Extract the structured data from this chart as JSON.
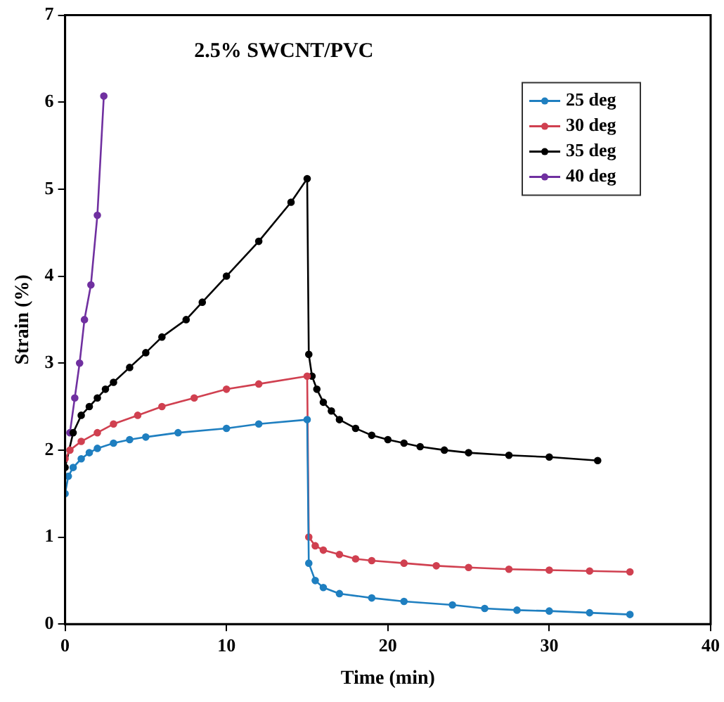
{
  "chart_data": {
    "type": "line",
    "title": "2.5% SWCNT/PVC",
    "xlabel": "Time (min)",
    "ylabel": "Strain (%)",
    "xlim": [
      0,
      40
    ],
    "xticks": [
      0,
      10,
      20,
      30,
      40
    ],
    "ylim": [
      0,
      7
    ],
    "yticks": [
      0,
      1,
      2,
      3,
      4,
      5,
      6,
      7
    ],
    "grid": false,
    "legend": "top right",
    "marker": "circle",
    "series": [
      {
        "name": "25 deg",
        "color": "#1f7fc0",
        "x": [
          0,
          0.2,
          0.5,
          1,
          1.5,
          2,
          3,
          4,
          5,
          7,
          10,
          12,
          15,
          15.1,
          15.5,
          16,
          17,
          19,
          21,
          24,
          26,
          28,
          30,
          32.5,
          35
        ],
        "values": [
          1.5,
          1.7,
          1.8,
          1.9,
          1.97,
          2.02,
          2.08,
          2.12,
          2.15,
          2.2,
          2.25,
          2.3,
          2.35,
          0.7,
          0.5,
          0.42,
          0.35,
          0.3,
          0.26,
          0.22,
          0.18,
          0.16,
          0.15,
          0.13,
          0.11
        ]
      },
      {
        "name": "30 deg",
        "color": "#d04050",
        "x": [
          0,
          0.3,
          1,
          2,
          3,
          4.5,
          6,
          8,
          10,
          12,
          15,
          15.1,
          15.5,
          16,
          17,
          18,
          19,
          21,
          23,
          25,
          27.5,
          30,
          32.5,
          35
        ],
        "values": [
          1.9,
          2.0,
          2.1,
          2.2,
          2.3,
          2.4,
          2.5,
          2.6,
          2.7,
          2.76,
          2.85,
          1.0,
          0.9,
          0.85,
          0.8,
          0.75,
          0.73,
          0.7,
          0.67,
          0.65,
          0.63,
          0.62,
          0.61,
          0.6
        ]
      },
      {
        "name": "35 deg",
        "color": "#000000",
        "x": [
          0,
          0.5,
          1,
          1.5,
          2,
          2.5,
          3,
          4,
          5,
          6,
          7.5,
          8.5,
          10,
          12,
          14,
          15,
          15.1,
          15.3,
          15.6,
          16,
          16.5,
          17,
          18,
          19,
          20,
          21,
          22,
          23.5,
          25,
          27.5,
          30,
          33
        ],
        "values": [
          1.8,
          2.2,
          2.4,
          2.5,
          2.6,
          2.7,
          2.78,
          2.95,
          3.12,
          3.3,
          3.5,
          3.7,
          4.0,
          4.4,
          4.85,
          5.12,
          3.1,
          2.85,
          2.7,
          2.55,
          2.45,
          2.35,
          2.25,
          2.17,
          2.12,
          2.08,
          2.04,
          2.0,
          1.97,
          1.94,
          1.92,
          1.88
        ]
      },
      {
        "name": "40 deg",
        "color": "#7030a0",
        "x": [
          0.3,
          0.6,
          0.9,
          1.2,
          1.6,
          2.0,
          2.4
        ],
        "values": [
          2.2,
          2.6,
          3.0,
          3.5,
          3.9,
          4.7,
          6.07
        ]
      }
    ]
  }
}
